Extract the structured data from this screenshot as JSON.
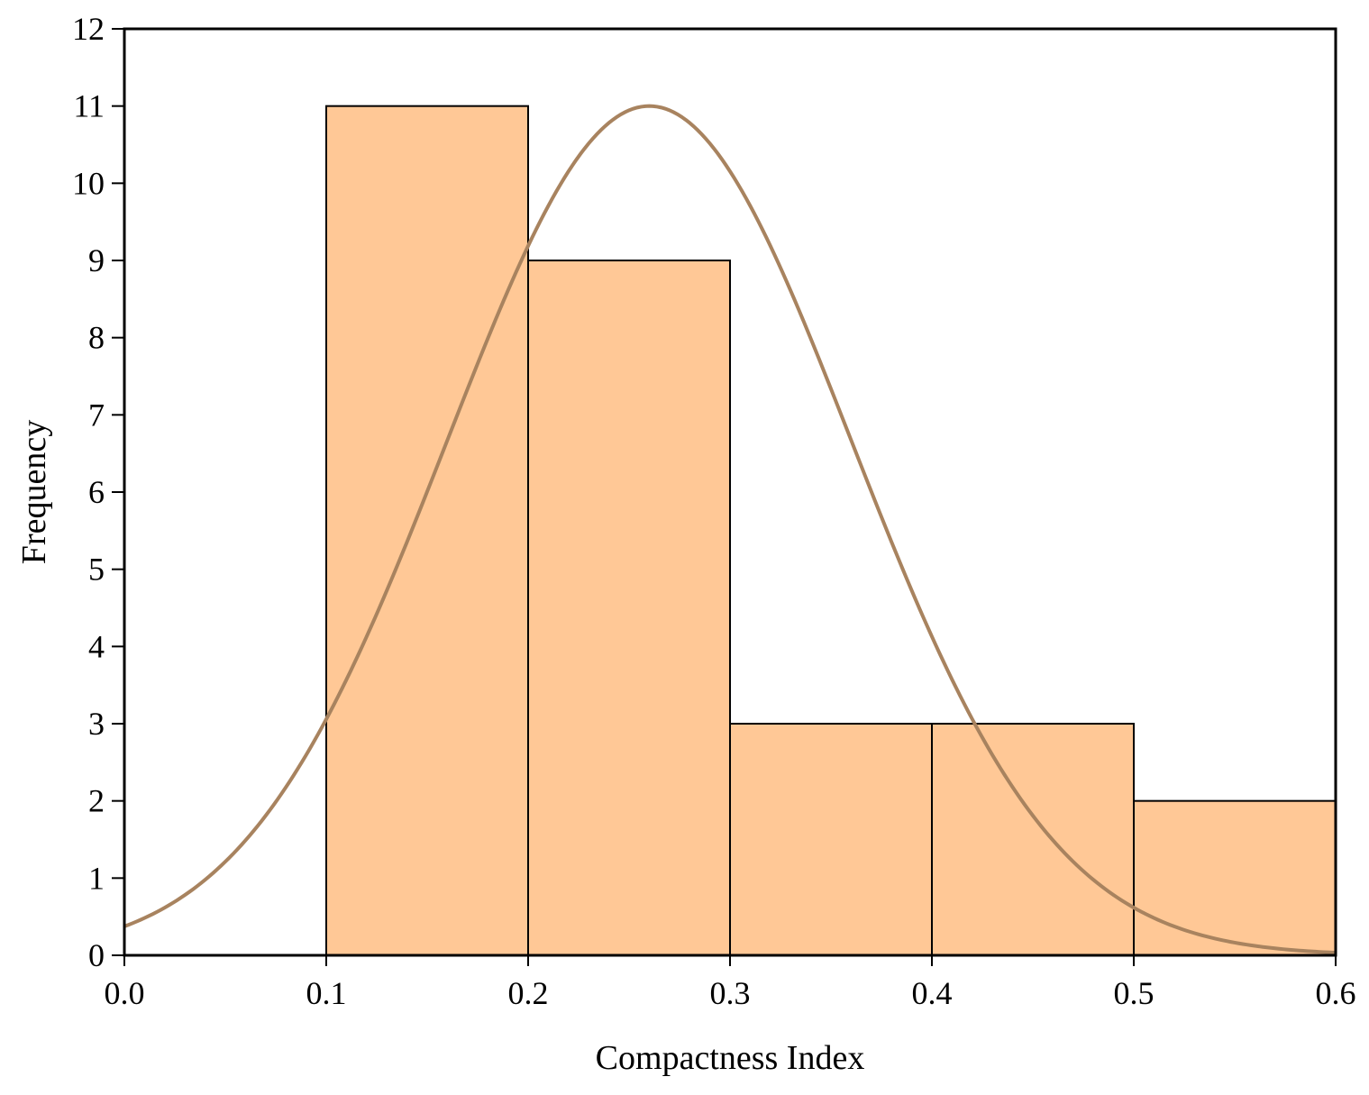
{
  "chart_data": {
    "type": "bar",
    "subtype": "histogram",
    "title": "",
    "xlabel": "Compactness Index",
    "ylabel": "Frequency",
    "xlim": [
      0.0,
      0.6
    ],
    "ylim": [
      0,
      12
    ],
    "x_ticks": [
      "0.0",
      "0.1",
      "0.2",
      "0.3",
      "0.4",
      "0.5",
      "0.6"
    ],
    "y_ticks": [
      "0",
      "1",
      "2",
      "3",
      "4",
      "5",
      "6",
      "7",
      "8",
      "9",
      "10",
      "11",
      "12"
    ],
    "bins": [
      {
        "start": 0.1,
        "end": 0.2,
        "value": 11
      },
      {
        "start": 0.2,
        "end": 0.3,
        "value": 9
      },
      {
        "start": 0.3,
        "end": 0.4,
        "value": 3
      },
      {
        "start": 0.4,
        "end": 0.5,
        "value": 3
      },
      {
        "start": 0.5,
        "end": 0.6,
        "value": 2
      }
    ],
    "normal_curve": {
      "mean": 0.26,
      "std": 0.1,
      "peak": 11
    },
    "grid": false,
    "legend": "none",
    "colors": {
      "bar_fill": "#ffc896",
      "bar_stroke": "#000000",
      "curve": "#a8835f",
      "axis": "#000000"
    }
  }
}
